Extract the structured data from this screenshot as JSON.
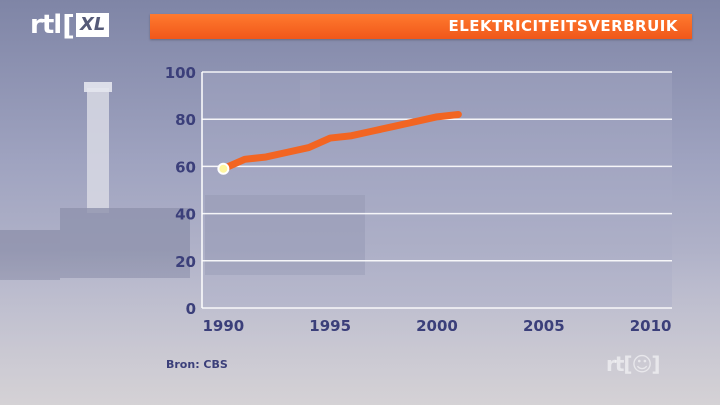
{
  "logo": {
    "rtl": "rtl",
    "xl": "XL"
  },
  "header": {
    "title": "ELEKTRICITEITSVERBRUIK"
  },
  "source": "Bron: CBS",
  "watermark": "rt[☺]",
  "colors": {
    "accent": "#f26522",
    "axis_text": "#3b3f7a",
    "grid": "#ffffff"
  },
  "chart_data": {
    "type": "line",
    "title": "ELEKTRICITEITSVERBRUIK",
    "xlabel": "",
    "ylabel": "",
    "xlim": [
      1989,
      2011
    ],
    "ylim": [
      0,
      100
    ],
    "x_ticks": [
      1990,
      1995,
      2000,
      2005,
      2010
    ],
    "y_ticks": [
      0,
      20,
      40,
      60,
      80,
      100
    ],
    "grid": true,
    "series": [
      {
        "x": [
          1990,
          1991,
          1992,
          1993,
          1994,
          1995,
          1996,
          1997,
          1998,
          1999,
          2000,
          2001
        ],
        "values": [
          59,
          63,
          64,
          66,
          68,
          72,
          73,
          75,
          77,
          79,
          81,
          82
        ]
      }
    ]
  }
}
